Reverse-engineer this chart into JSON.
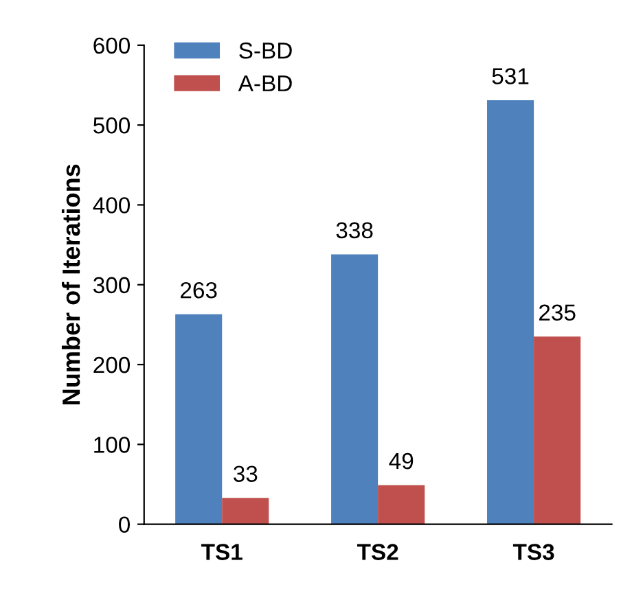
{
  "chart_data": {
    "type": "bar",
    "ylabel": "Number of Iterations",
    "categories": [
      "TS1",
      "TS2",
      "TS3"
    ],
    "series": [
      {
        "name": "S-BD",
        "color": "#4f81bd",
        "values": [
          263,
          338,
          531
        ]
      },
      {
        "name": "A-BD",
        "color": "#c0504d",
        "values": [
          33,
          49,
          235
        ]
      }
    ],
    "ylim": [
      0,
      600
    ],
    "yticks": [
      0,
      100,
      200,
      300,
      400,
      500,
      600
    ],
    "grid": false,
    "legend": "top left",
    "data_labels": true
  }
}
